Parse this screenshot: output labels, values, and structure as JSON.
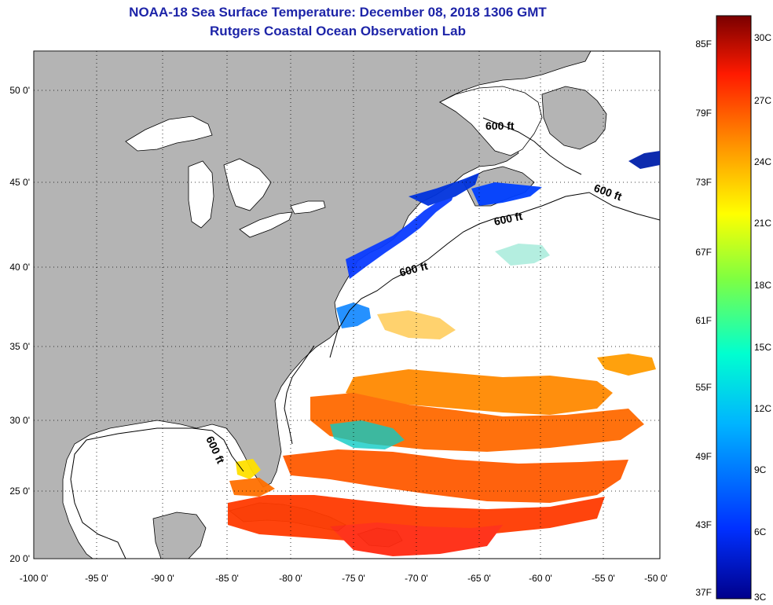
{
  "header": {
    "title": "NOAA-18 Sea Surface Temperature:  December 08, 2018 1306 GMT",
    "subtitle": "Rutgers Coastal Ocean Observation Lab"
  },
  "map": {
    "lat_labels": [
      "50 0'",
      "45 0'",
      "40 0'",
      "35 0'",
      "30 0'",
      "25 0'",
      "20 0'"
    ],
    "lon_labels": [
      "-100 0'",
      "-95 0'",
      "-90 0'",
      "-85 0'",
      "-80 0'",
      "-75 0'",
      "-70 0'",
      "-65 0'",
      "-60 0'",
      "-55 0'",
      "-50 0'"
    ],
    "contour_label": "600 ft",
    "land_color": "#b4b4b4",
    "ocean_color": "#ffffff"
  },
  "colorbar": {
    "fahrenheit": [
      "85F",
      "79F",
      "73F",
      "67F",
      "61F",
      "55F",
      "49F",
      "43F",
      "37F"
    ],
    "celsius": [
      "30C",
      "27C",
      "24C",
      "21C",
      "18C",
      "15C",
      "12C",
      "9C",
      "6C",
      "3C"
    ],
    "colors": [
      "#7a0000",
      "#ff1a00",
      "#ff8c00",
      "#ffff00",
      "#00ffc8",
      "#00aaff",
      "#0040ff",
      "#00008b"
    ]
  }
}
